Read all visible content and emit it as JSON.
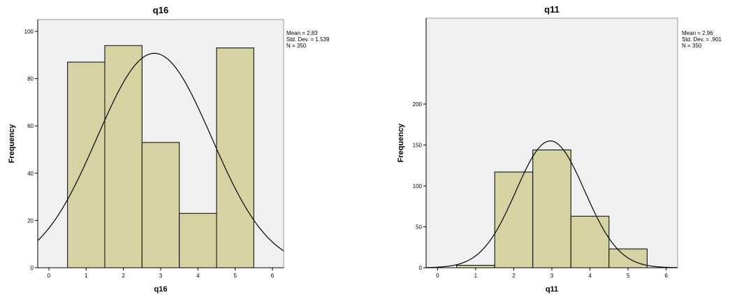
{
  "colors": {
    "bar_fill": "#d6d3a2",
    "bar_stroke": "#000000",
    "plot_background": "#f0f0f0"
  },
  "chart_data": [
    {
      "type": "bar",
      "subtype": "histogram",
      "title": "q16",
      "xlabel": "q16",
      "ylabel": "Frequency",
      "categories": [
        1,
        2,
        3,
        4,
        5
      ],
      "values": [
        87,
        94,
        53,
        23,
        93
      ],
      "xlim": [
        -0.3,
        6.3
      ],
      "ylim": [
        0,
        105
      ],
      "xticks": [
        0,
        1,
        2,
        3,
        4,
        5,
        6
      ],
      "xtick_labels": [
        "0",
        "1",
        "2",
        "3",
        "4",
        "5",
        "6"
      ],
      "yticks": [
        0,
        20,
        40,
        60,
        80,
        100
      ],
      "ytick_labels": [
        "0",
        "20",
        "40",
        "60",
        "80",
        "100"
      ],
      "normal_curve": {
        "mean": 2.83,
        "sd": 1.539,
        "n": 350,
        "bin_width": 1
      },
      "stats": [
        "Mean = 2.83",
        "Std. Dev. = 1.539",
        "N = 350"
      ],
      "grid": false,
      "legend": "none"
    },
    {
      "type": "bar",
      "subtype": "histogram",
      "title": "q11",
      "xlabel": "q11",
      "ylabel": "Frequency",
      "categories": [
        1,
        2,
        3,
        4,
        5
      ],
      "values": [
        3,
        117,
        144,
        63,
        23
      ],
      "xlim": [
        -0.3,
        6.3
      ],
      "ylim": [
        0,
        305
      ],
      "xticks": [
        0,
        1,
        2,
        3,
        4,
        5,
        6
      ],
      "xtick_labels": [
        "0",
        "1",
        "2",
        "3",
        "4",
        "5",
        "6"
      ],
      "yticks": [
        0,
        50,
        100,
        150,
        200
      ],
      "ytick_labels": [
        "0",
        "50",
        "100",
        "150",
        "200"
      ],
      "normal_curve": {
        "mean": 2.96,
        "sd": 0.901,
        "n": 350,
        "bin_width": 1
      },
      "stats": [
        "Mean = 2.96",
        "Std. Dev. = .901",
        "N = 350"
      ],
      "grid": false,
      "legend": "none"
    }
  ]
}
